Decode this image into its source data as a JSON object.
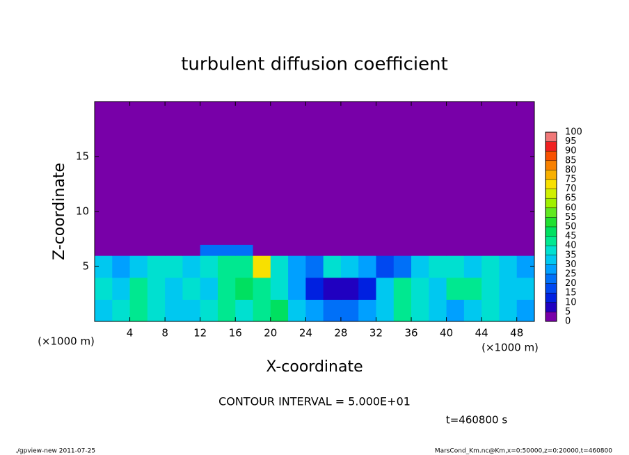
{
  "chart_data": {
    "type": "heatmap",
    "title": "turbulent diffusion coefficient",
    "xlabel": "X-coordinate",
    "ylabel": "Z-coordinate",
    "xunit": "(×1000 m)",
    "yunit": "(×1000 m)",
    "note": "CONTOUR INTERVAL = 5.000E+01",
    "time": "t=460800 s",
    "footer_left": "./gpview-new  2011-07-25",
    "footer_right": "MarsCond_Km.nc@Km,x=0:50000,z=0:20000,t=460800",
    "xlim": [
      0,
      50
    ],
    "ylim": [
      0,
      20
    ],
    "xticks": [
      4,
      8,
      12,
      16,
      20,
      24,
      28,
      32,
      36,
      40,
      44,
      48
    ],
    "yticks": [
      5,
      10,
      15
    ],
    "xbins": [
      0,
      2,
      4,
      6,
      8,
      10,
      12,
      14,
      16,
      18,
      20,
      22,
      24,
      26,
      28,
      30,
      32,
      34,
      36,
      38,
      40,
      42,
      44,
      46,
      48,
      50
    ],
    "zbins": [
      0,
      2,
      4,
      6,
      7,
      20
    ],
    "z": [
      [
        30,
        35,
        40,
        35,
        30,
        30,
        35,
        40,
        35,
        40,
        45,
        30,
        25,
        20,
        20,
        25,
        30,
        40,
        35,
        30,
        25,
        30,
        35,
        30,
        25
      ],
      [
        35,
        30,
        40,
        35,
        30,
        35,
        30,
        40,
        45,
        40,
        35,
        25,
        10,
        5,
        5,
        10,
        30,
        40,
        35,
        30,
        40,
        40,
        35,
        30,
        30
      ],
      [
        30,
        25,
        30,
        35,
        35,
        30,
        35,
        40,
        40,
        70,
        35,
        25,
        20,
        35,
        30,
        25,
        15,
        20,
        30,
        35,
        35,
        30,
        35,
        30,
        25
      ],
      [
        0,
        0,
        0,
        0,
        0,
        0,
        20,
        20,
        20,
        0,
        0,
        0,
        0,
        0,
        0,
        0,
        0,
        0,
        0,
        0,
        0,
        0,
        0,
        0,
        0
      ],
      [
        0,
        0,
        0,
        0,
        0,
        0,
        0,
        0,
        0,
        0,
        0,
        0,
        0,
        0,
        0,
        0,
        0,
        0,
        0,
        0,
        0,
        0,
        0,
        0,
        0
      ]
    ],
    "levels": [
      0,
      5,
      10,
      15,
      20,
      25,
      30,
      35,
      40,
      45,
      50,
      55,
      60,
      65,
      70,
      75,
      80,
      85,
      90,
      95,
      100
    ],
    "colors": [
      "#7800a8",
      "#2000c0",
      "#0020e0",
      "#0048f0",
      "#0070f8",
      "#00a0ff",
      "#00c8f0",
      "#00e0d0",
      "#00e890",
      "#00e060",
      "#20e030",
      "#60e820",
      "#a0f000",
      "#d0f000",
      "#f8e000",
      "#f8b000",
      "#f88000",
      "#f85000",
      "#f02020",
      "#f07878"
    ]
  }
}
